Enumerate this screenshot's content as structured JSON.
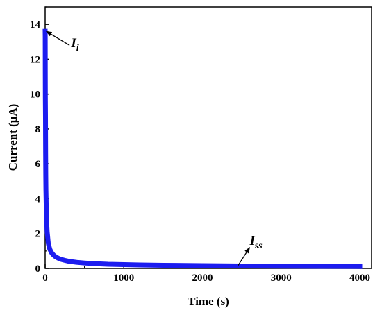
{
  "chart_data": {
    "type": "line",
    "xlabel": "Time (s)",
    "ylabel": "Current (μA)",
    "xlim": [
      0,
      4150
    ],
    "ylim": [
      0,
      15
    ],
    "xticks": [
      0,
      1000,
      2000,
      3000,
      4000
    ],
    "yticks": [
      0,
      2,
      4,
      6,
      8,
      10,
      12,
      14
    ],
    "grid": false,
    "legend": "none",
    "series": [
      {
        "color": "#1c1cf0",
        "x": [
          0,
          1,
          2,
          3,
          4,
          5,
          6,
          8,
          10,
          12,
          15,
          18,
          22,
          26,
          30,
          35,
          40,
          50,
          60,
          75,
          90,
          110,
          130,
          160,
          200,
          250,
          300,
          400,
          500,
          600,
          800,
          1000,
          1200,
          1500,
          2000,
          2500,
          3000,
          3500,
          4000
        ],
        "y": [
          13.6,
          13.3,
          11.2,
          9.8,
          8.7,
          7.5,
          6.6,
          5.3,
          4.5,
          3.9,
          3.3,
          2.8,
          2.4,
          2.1,
          1.9,
          1.65,
          1.45,
          1.25,
          1.1,
          0.95,
          0.85,
          0.75,
          0.68,
          0.6,
          0.52,
          0.46,
          0.41,
          0.35,
          0.31,
          0.28,
          0.24,
          0.22,
          0.2,
          0.18,
          0.16,
          0.14,
          0.13,
          0.12,
          0.11
        ]
      }
    ],
    "annotations": [
      {
        "main": "I",
        "sub": "i",
        "x": 330,
        "y": 12.7,
        "arrow_to": [
          15,
          13.6
        ]
      },
      {
        "main": "I",
        "sub": "ss",
        "x": 2600,
        "y": 1.35,
        "arrow_from": [
          2450,
          0.15
        ],
        "arrow_to": [
          2600,
          1.2
        ]
      }
    ]
  }
}
